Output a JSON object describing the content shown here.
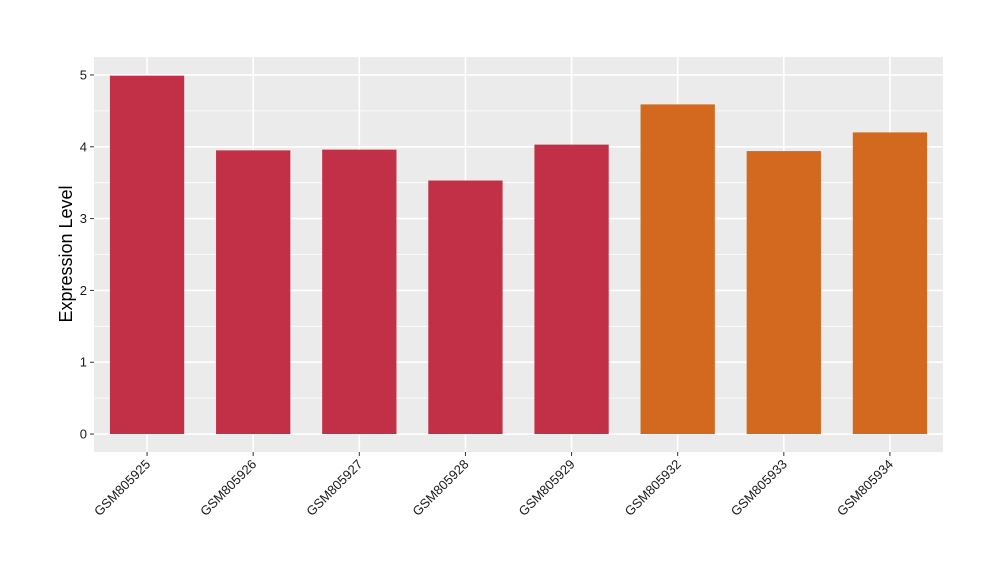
{
  "chart_data": {
    "type": "bar",
    "title": "",
    "xlabel": "",
    "ylabel": "Expression Level",
    "categories": [
      "GSM805925",
      "GSM805926",
      "GSM805927",
      "GSM805928",
      "GSM805929",
      "GSM805932",
      "GSM805933",
      "GSM805934"
    ],
    "values": [
      4.99,
      3.95,
      3.96,
      3.53,
      4.03,
      4.59,
      3.94,
      4.2
    ],
    "groups": [
      "group-1",
      "group-1",
      "group-1",
      "group-1",
      "group-1",
      "group-2",
      "group-2",
      "group-2"
    ],
    "group_colors": {
      "group-1": "#C13047",
      "group-2": "#D2691E"
    },
    "ylim": [
      -0.25,
      5.25
    ],
    "yticks": [
      0,
      1,
      2,
      3,
      4,
      5
    ],
    "grid": true,
    "legend": "none",
    "panel_background": "#EBEBEB",
    "gridline_color": "#FFFFFF"
  }
}
